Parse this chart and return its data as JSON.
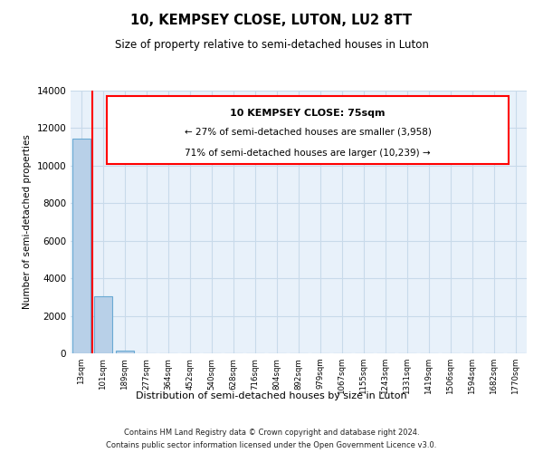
{
  "title": "10, KEMPSEY CLOSE, LUTON, LU2 8TT",
  "subtitle": "Size of property relative to semi-detached houses in Luton",
  "xlabel": "Distribution of semi-detached houses by size in Luton",
  "ylabel": "Number of semi-detached properties",
  "bar_labels": [
    "13sqm",
    "101sqm",
    "189sqm",
    "277sqm",
    "364sqm",
    "452sqm",
    "540sqm",
    "628sqm",
    "716sqm",
    "804sqm",
    "892sqm",
    "979sqm",
    "1067sqm",
    "1155sqm",
    "1243sqm",
    "1331sqm",
    "1419sqm",
    "1506sqm",
    "1594sqm",
    "1682sqm",
    "1770sqm"
  ],
  "bar_values": [
    11450,
    3050,
    130,
    0,
    0,
    0,
    0,
    0,
    0,
    0,
    0,
    0,
    0,
    0,
    0,
    0,
    0,
    0,
    0,
    0,
    0
  ],
  "bar_color": "#b8d0e8",
  "bar_edge_color": "#6aaad4",
  "ylim": [
    0,
    14000
  ],
  "yticks": [
    0,
    2000,
    4000,
    6000,
    8000,
    10000,
    12000,
    14000
  ],
  "annotation_box_title": "10 KEMPSEY CLOSE: 75sqm",
  "annotation_line1": "← 27% of semi-detached houses are smaller (3,958)",
  "annotation_line2": "71% of semi-detached houses are larger (10,239) →",
  "red_line_x": 0.575,
  "red_line_color": "#ff0000",
  "footer_line1": "Contains HM Land Registry data © Crown copyright and database right 2024.",
  "footer_line2": "Contains public sector information licensed under the Open Government Licence v3.0.",
  "background_color": "#ffffff",
  "grid_color": "#c8daea",
  "axes_bg_color": "#e8f1fa"
}
